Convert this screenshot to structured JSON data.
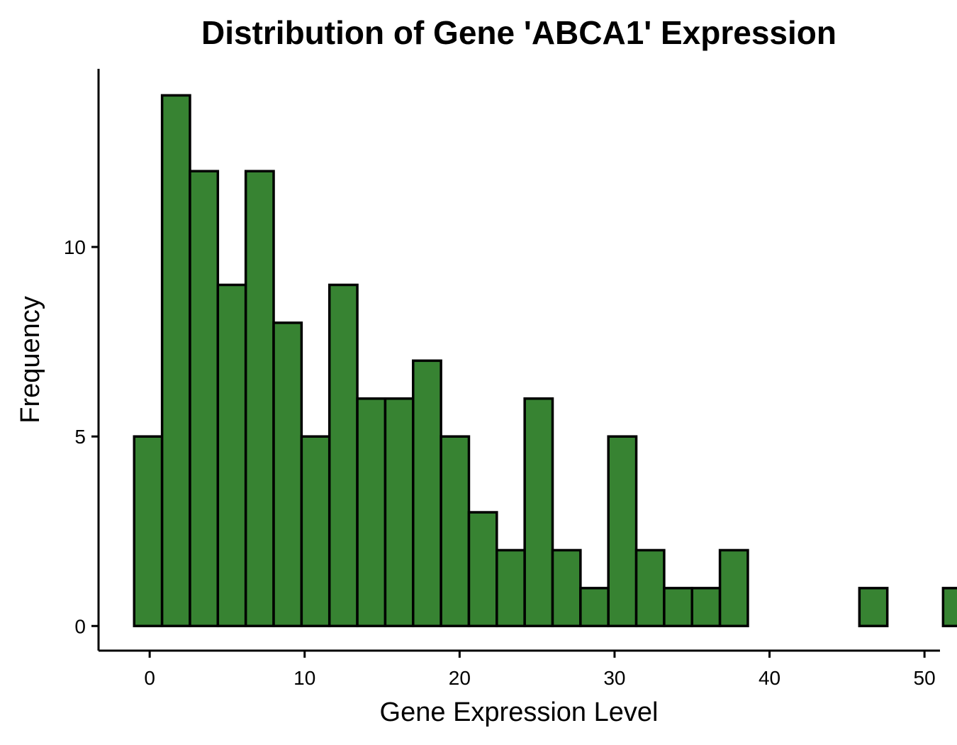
{
  "chart_data": {
    "type": "bar",
    "subtype": "histogram",
    "title": "Distribution of Gene 'ABCA1' Expression",
    "xlabel": "Gene Expression Level",
    "ylabel": "Frequency",
    "bin_width": 1.8,
    "bin_start": -1.0,
    "bins": [
      {
        "x0": -1.0,
        "x1": 0.8,
        "count": 5
      },
      {
        "x0": 0.8,
        "x1": 2.6,
        "count": 14
      },
      {
        "x0": 2.6,
        "x1": 4.4,
        "count": 12
      },
      {
        "x0": 4.4,
        "x1": 6.2,
        "count": 9
      },
      {
        "x0": 6.2,
        "x1": 8.0,
        "count": 12
      },
      {
        "x0": 8.0,
        "x1": 9.8,
        "count": 8
      },
      {
        "x0": 9.8,
        "x1": 11.6,
        "count": 5
      },
      {
        "x0": 11.6,
        "x1": 13.4,
        "count": 9
      },
      {
        "x0": 13.4,
        "x1": 15.2,
        "count": 6
      },
      {
        "x0": 15.2,
        "x1": 17.0,
        "count": 6
      },
      {
        "x0": 17.0,
        "x1": 18.8,
        "count": 7
      },
      {
        "x0": 18.8,
        "x1": 20.6,
        "count": 5
      },
      {
        "x0": 20.6,
        "x1": 22.4,
        "count": 3
      },
      {
        "x0": 22.4,
        "x1": 24.2,
        "count": 2
      },
      {
        "x0": 24.2,
        "x1": 26.0,
        "count": 6
      },
      {
        "x0": 26.0,
        "x1": 27.8,
        "count": 2
      },
      {
        "x0": 27.8,
        "x1": 29.6,
        "count": 1
      },
      {
        "x0": 29.6,
        "x1": 31.4,
        "count": 5
      },
      {
        "x0": 31.4,
        "x1": 33.2,
        "count": 2
      },
      {
        "x0": 33.2,
        "x1": 35.0,
        "count": 1
      },
      {
        "x0": 35.0,
        "x1": 36.8,
        "count": 1
      },
      {
        "x0": 36.8,
        "x1": 38.6,
        "count": 2
      },
      {
        "x0": 38.6,
        "x1": 40.4,
        "count": 0
      },
      {
        "x0": 40.4,
        "x1": 42.2,
        "count": 0
      },
      {
        "x0": 42.2,
        "x1": 44.0,
        "count": 0
      },
      {
        "x0": 44.0,
        "x1": 45.8,
        "count": 0
      },
      {
        "x0": 45.8,
        "x1": 47.6,
        "count": 1
      },
      {
        "x0": 47.6,
        "x1": 49.4,
        "count": 0
      },
      {
        "x0": 49.4,
        "x1": 51.2,
        "count": 0
      },
      {
        "x0": 51.2,
        "x1": 53.0,
        "count": 1
      }
    ],
    "x_ticks": [
      0,
      10,
      20,
      30,
      40,
      50
    ],
    "y_ticks": [
      0,
      5,
      10
    ],
    "xlim": [
      -3.3,
      51.0
    ],
    "ylim": [
      -0.65,
      14.7
    ],
    "grid": false,
    "legend": "none",
    "colors": {
      "bar_fill": "#378332",
      "bar_stroke": "#000000",
      "axis": "#000000"
    }
  }
}
